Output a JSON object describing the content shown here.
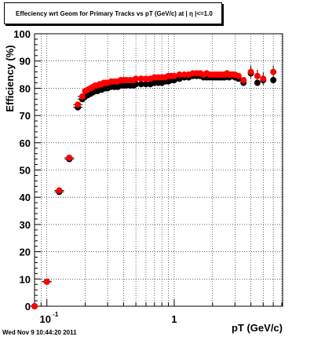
{
  "chart_data": {
    "type": "scatter",
    "title": "Effeciency wrt Geom for Primary Tracks vs pT (GeV/c) at | η |<=1.0",
    "xlabel": "pT (GeV/c)",
    "ylabel": "Efficiency (%)",
    "x_scale": "log",
    "xlim": [
      0.08,
      7.1
    ],
    "ylim": [
      0,
      100
    ],
    "grid": true,
    "x_tick_labels": [
      "10-1",
      "1"
    ],
    "y_ticks": [
      0,
      10,
      20,
      30,
      40,
      50,
      60,
      70,
      80,
      90,
      100
    ],
    "series": [
      {
        "color": "#000000",
        "x": [
          0.08,
          0.1,
          0.125,
          0.15,
          0.175,
          0.19,
          0.2,
          0.21,
          0.22,
          0.23,
          0.24,
          0.25,
          0.26,
          0.27,
          0.28,
          0.29,
          0.3,
          0.32,
          0.34,
          0.36,
          0.38,
          0.4,
          0.42,
          0.45,
          0.48,
          0.5,
          0.55,
          0.6,
          0.65,
          0.7,
          0.75,
          0.8,
          0.85,
          0.9,
          0.95,
          1.0,
          1.1,
          1.2,
          1.3,
          1.4,
          1.5,
          1.6,
          1.7,
          1.8,
          1.9,
          2.0,
          2.1,
          2.2,
          2.3,
          2.4,
          2.5,
          2.6,
          2.7,
          2.8,
          2.9,
          3.0,
          3.2,
          3.5,
          4.0,
          4.5,
          5.0,
          6.0
        ],
        "y": [
          0,
          9,
          42,
          54,
          73,
          76,
          77,
          77.5,
          78,
          78.5,
          79,
          79,
          79.5,
          79.5,
          80,
          80,
          80,
          80.5,
          80.5,
          80.5,
          81,
          81,
          81,
          81,
          81,
          81.5,
          81.5,
          81.5,
          81.5,
          82,
          82,
          82,
          82.5,
          82.5,
          83,
          83,
          83.5,
          84,
          84,
          84.5,
          84.5,
          84.5,
          84,
          84,
          84,
          84,
          84,
          84,
          84,
          84,
          84,
          84.5,
          84,
          84.5,
          84.5,
          84,
          83.5,
          82,
          85.5,
          82,
          83,
          83
        ]
      },
      {
        "color": "#ff0000",
        "x": [
          0.08,
          0.1,
          0.125,
          0.15,
          0.175,
          0.19,
          0.2,
          0.21,
          0.22,
          0.23,
          0.24,
          0.25,
          0.26,
          0.27,
          0.28,
          0.29,
          0.3,
          0.32,
          0.34,
          0.36,
          0.38,
          0.4,
          0.42,
          0.45,
          0.48,
          0.5,
          0.55,
          0.6,
          0.65,
          0.7,
          0.75,
          0.8,
          0.85,
          0.9,
          0.95,
          1.0,
          1.1,
          1.2,
          1.3,
          1.4,
          1.5,
          1.6,
          1.7,
          1.8,
          1.9,
          2.0,
          2.1,
          2.2,
          2.3,
          2.4,
          2.5,
          2.6,
          2.7,
          2.8,
          2.9,
          3.0,
          3.2,
          3.5,
          4.0,
          4.5,
          5.0,
          6.0
        ],
        "y": [
          0,
          9,
          42.5,
          54.5,
          74,
          77,
          79,
          79.5,
          80,
          80.5,
          81,
          81,
          81.5,
          81.5,
          82,
          82,
          82,
          82.5,
          82.5,
          82.5,
          83,
          83,
          83,
          83,
          83,
          83.5,
          83.5,
          83.5,
          83.5,
          84,
          84,
          84,
          84,
          84.5,
          84.5,
          84.5,
          85,
          85,
          85,
          85.5,
          85.5,
          85.5,
          85,
          85.5,
          85,
          85,
          85,
          85,
          85,
          85,
          85,
          85.5,
          85,
          85,
          85,
          85,
          84.5,
          83,
          86,
          84.5,
          83.5,
          86
        ]
      }
    ]
  },
  "stamp": "Wed Nov  9 10:44:20 2011"
}
